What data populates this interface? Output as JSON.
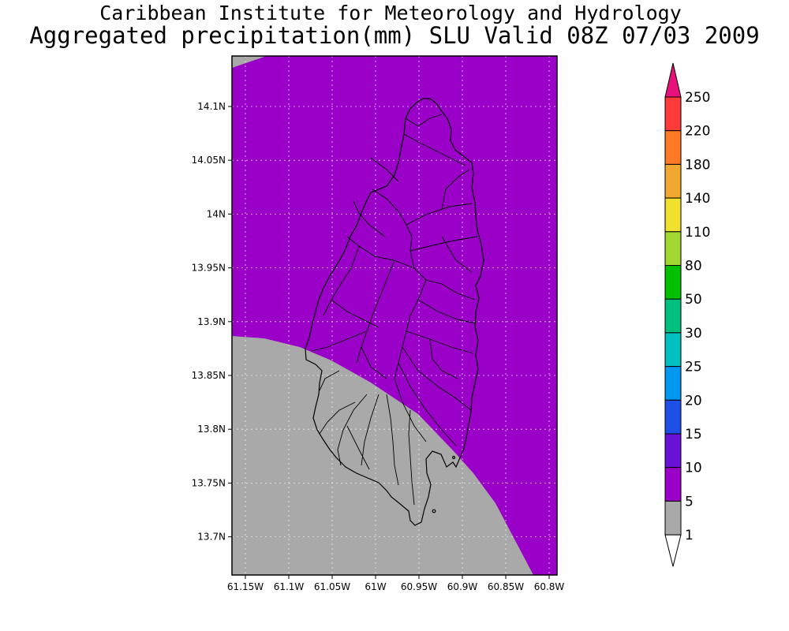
{
  "title": {
    "line1": "Caribbean Institute for Meteorology and Hydrology",
    "line2": "Aggregated precipitation(mm) SLU Valid 08Z 07/03 2009"
  },
  "map": {
    "lat_labels": [
      "14.1N",
      "14.05N",
      "14N",
      "13.95N",
      "13.9N",
      "13.85N",
      "13.8N",
      "13.75N",
      "13.7N"
    ],
    "lon_labels": [
      "61.15W",
      "61.1W",
      "61.05W",
      "61W",
      "60.95W",
      "60.9W",
      "60.85W",
      "60.8W"
    ],
    "fill_colors": {
      "high": "#9b00c8",
      "low": "#a9a9a9"
    },
    "grid": "dotted"
  },
  "colorbar": {
    "labels": [
      "250",
      "220",
      "180",
      "140",
      "110",
      "80",
      "50",
      "30",
      "25",
      "20",
      "15",
      "10",
      "5",
      "1"
    ],
    "colors": [
      "#ff3a3a",
      "#ff7a24",
      "#f0a830",
      "#f0e030",
      "#a0d830",
      "#00c000",
      "#00c080",
      "#00c0c0",
      "#0098f0",
      "#1e50e8",
      "#6a10d8",
      "#9b00c8",
      "#a9a9a9"
    ],
    "top_color": "#e8107a",
    "bottom_color": "#ffffff"
  }
}
